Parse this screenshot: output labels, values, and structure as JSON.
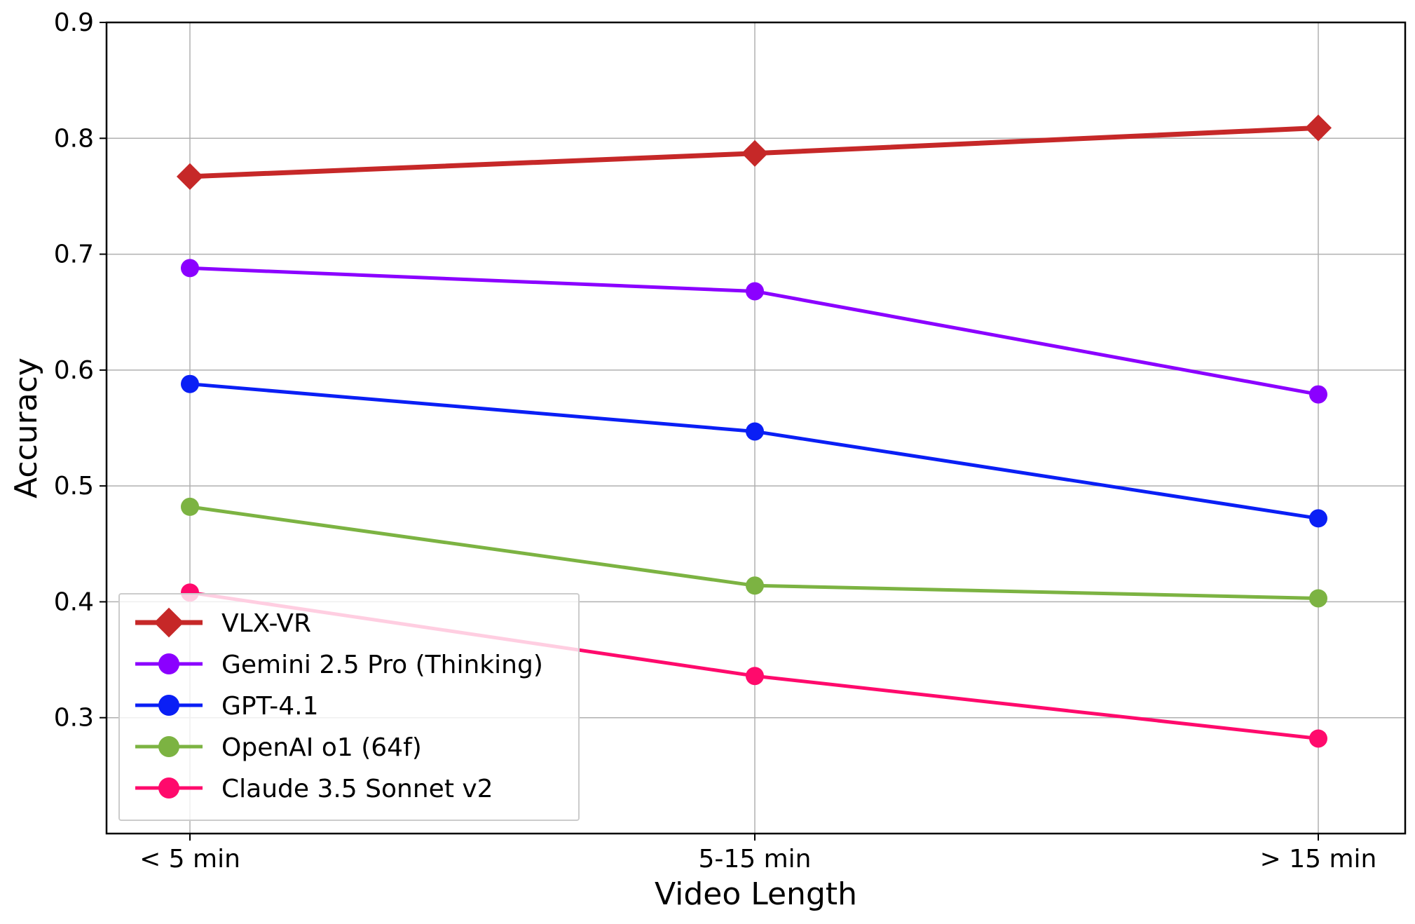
{
  "chart_data": {
    "type": "line",
    "title": "",
    "xlabel": "Video Length",
    "ylabel": "Accuracy",
    "categories": [
      "< 5 min",
      "5-15 min",
      "> 15 min"
    ],
    "ylim": [
      0.2,
      0.9
    ],
    "yticks": [
      0.3,
      0.4,
      0.5,
      0.6,
      0.7,
      0.8,
      0.9
    ],
    "ytick_labels": [
      "0.3",
      "0.4",
      "0.5",
      "0.6",
      "0.7",
      "0.8",
      "0.9"
    ],
    "grid": true,
    "legend_position": "lower-left",
    "series": [
      {
        "name": "VLX-VR",
        "values": [
          0.767,
          0.787,
          0.809
        ],
        "color": "#c62828",
        "marker": "diamond"
      },
      {
        "name": "Gemini 2.5 Pro (Thinking)",
        "values": [
          0.688,
          0.668,
          0.579
        ],
        "color": "#8b00ff",
        "marker": "circle"
      },
      {
        "name": "GPT-4.1",
        "values": [
          0.588,
          0.547,
          0.472
        ],
        "color": "#0a1ff5",
        "marker": "circle"
      },
      {
        "name": "OpenAI o1 (64f)",
        "values": [
          0.482,
          0.414,
          0.403
        ],
        "color": "#7cb342",
        "marker": "circle"
      },
      {
        "name": "Claude 3.5 Sonnet v2",
        "values": [
          0.408,
          0.336,
          0.282
        ],
        "color": "#ff0a6c",
        "marker": "circle"
      }
    ]
  }
}
